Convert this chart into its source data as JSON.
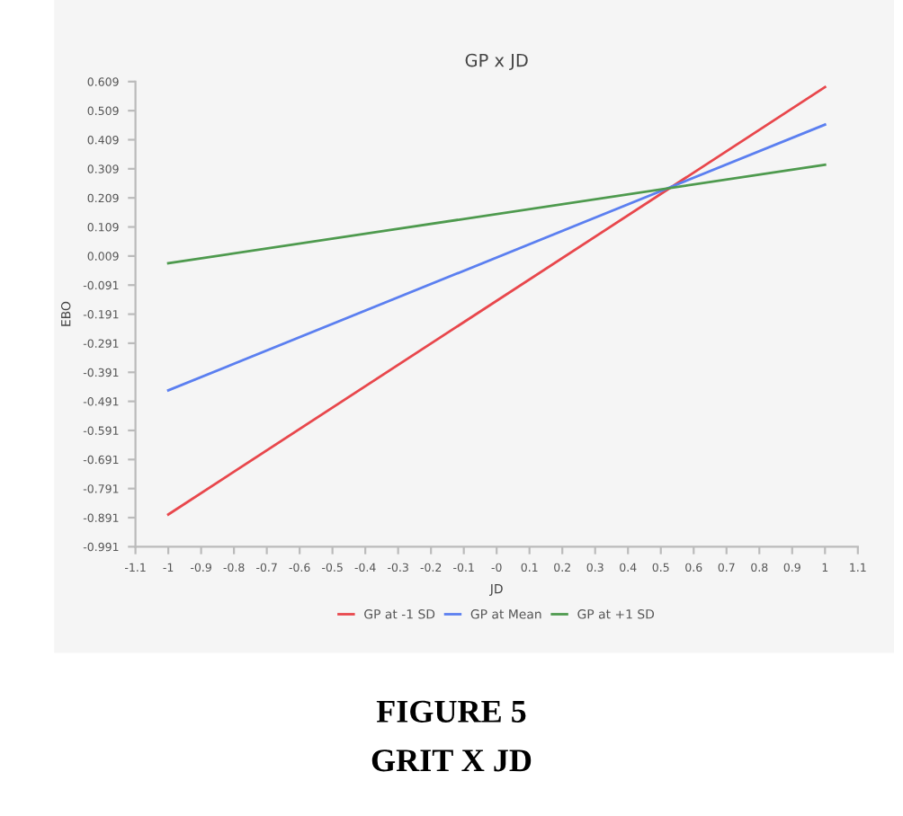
{
  "chart_data": {
    "type": "line",
    "title": "GP x JD",
    "xlabel": "JD",
    "ylabel": "EBO",
    "x": [
      -1,
      1
    ],
    "series": [
      {
        "name": "GP at -1 SD",
        "color": "#e8474c",
        "values": [
          -0.88,
          0.59
        ]
      },
      {
        "name": "GP at Mean",
        "color": "#5b7ff0",
        "values": [
          -0.453,
          0.461
        ]
      },
      {
        "name": "GP at +1 SD",
        "color": "#4e9a4e",
        "values": [
          -0.016,
          0.323
        ]
      }
    ],
    "xlim": [
      -1.1,
      1.1
    ],
    "xticks": [
      -1.1,
      -1,
      -0.9,
      -0.8,
      -0.7,
      -0.6,
      -0.5,
      -0.4,
      -0.3,
      -0.2,
      -0.1,
      {
        "value": 0,
        "label": "-0"
      },
      0.1,
      0.2,
      0.3,
      0.4,
      0.5,
      0.6,
      0.7,
      0.8,
      0.9,
      1,
      1.1
    ],
    "ylim": [
      -0.991,
      0.609
    ],
    "yticks": [
      -0.991,
      -0.891,
      -0.791,
      -0.691,
      -0.591,
      -0.491,
      -0.391,
      -0.291,
      -0.191,
      -0.091,
      0.009,
      0.109,
      0.209,
      0.309,
      0.409,
      0.509,
      0.609
    ],
    "grid": false,
    "legend": "bottom",
    "marker": "none",
    "line_style": "solid",
    "annotations": [
      "FIGURE 5",
      "GRIT X JD"
    ]
  }
}
